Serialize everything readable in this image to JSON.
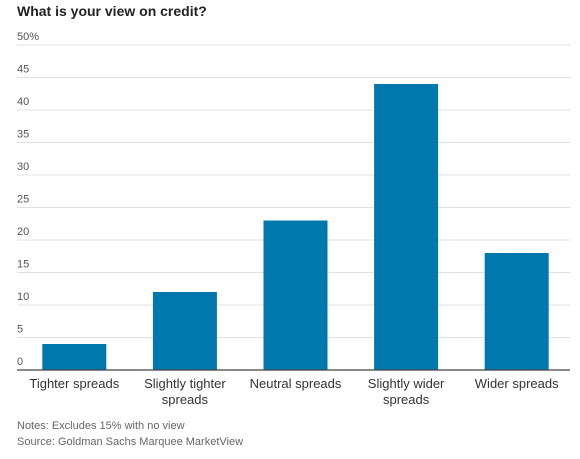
{
  "chart_data": {
    "type": "bar",
    "title": "What is your view on credit?",
    "categories": [
      "Tighter spreads",
      "Slightly tighter spreads",
      "Neutral spreads",
      "Slightly wider spreads",
      "Wider spreads"
    ],
    "category_lines": [
      [
        "Tighter spreads"
      ],
      [
        "Slightly tighter",
        "spreads"
      ],
      [
        "Neutral spreads"
      ],
      [
        "Slightly wider",
        "spreads"
      ],
      [
        "Wider spreads"
      ]
    ],
    "values": [
      4,
      12,
      23,
      44,
      18
    ],
    "ylim": [
      0,
      50
    ],
    "yticks": [
      0,
      5,
      10,
      15,
      20,
      25,
      30,
      35,
      40,
      45,
      50
    ],
    "ytick_labels": [
      "0",
      "5",
      "10",
      "15",
      "20",
      "25",
      "30",
      "35",
      "40",
      "45",
      "50%"
    ],
    "grid": true,
    "bar_color": "#0077ad"
  },
  "notes": {
    "note": "Notes: Excludes 15% with no view",
    "source": "Source: Goldman Sachs Marquee MarketView"
  }
}
